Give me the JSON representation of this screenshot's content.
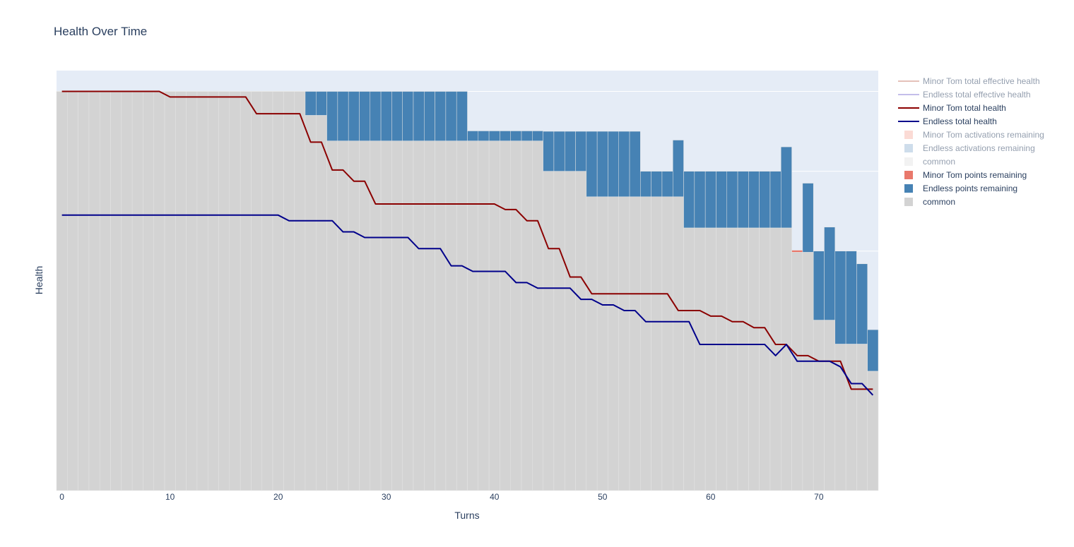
{
  "chart_data": {
    "type": "bar",
    "title": "Health Over Time",
    "xlabel": "Turns",
    "ylabel": "Health",
    "x_range": [
      -0.5,
      75.5
    ],
    "y_range": [
      0,
      100
    ],
    "x_ticks": [
      0,
      10,
      20,
      30,
      40,
      50,
      60,
      70
    ],
    "barmode": "stack",
    "plot_bgcolor": "#e5ecf6",
    "grid": true,
    "legend_position": "right",
    "colors": {
      "common": "#d3d3d3",
      "endless_points": "#4682b4",
      "minor_tom_points": "#e9786b",
      "minor_tom_line": "#8b0000",
      "endless_line": "#00008b",
      "minor_tom_effective": "#cd8475",
      "endless_effective": "#8a7fd6",
      "minor_tom_activations": "#f8b8ac",
      "endless_activations": "#9fbcd8",
      "common_faded": "#e6e6e6"
    },
    "series": [
      {
        "name": "Minor Tom total effective health",
        "kind": "line",
        "visible": "legendonly",
        "color_key": "minor_tom_effective"
      },
      {
        "name": "Endless total effective health",
        "kind": "line",
        "visible": "legendonly",
        "color_key": "endless_effective"
      },
      {
        "name": "Minor Tom total health",
        "kind": "line",
        "visible": true,
        "color_key": "minor_tom_line",
        "x": [
          0,
          9,
          10,
          17,
          18,
          22,
          23,
          24,
          25,
          26,
          27,
          28,
          29,
          40,
          41,
          42,
          43,
          44,
          45,
          46,
          47,
          48,
          49,
          56,
          57,
          59,
          60,
          61,
          62,
          63,
          64,
          65,
          66,
          67,
          68,
          69,
          70,
          71,
          72,
          73,
          74,
          75
        ],
        "y": [
          100,
          100,
          98.6,
          98.6,
          94.4,
          94.4,
          87.3,
          87.3,
          80.3,
          80.3,
          77.5,
          77.5,
          71.8,
          71.8,
          70.4,
          70.4,
          67.6,
          67.6,
          60.6,
          60.6,
          53.5,
          53.5,
          49.3,
          49.3,
          45.1,
          45.1,
          43.7,
          43.7,
          42.3,
          42.3,
          40.8,
          40.8,
          36.6,
          36.6,
          33.8,
          33.8,
          32.4,
          32.4,
          32.4,
          25.4,
          25.4,
          25.4
        ]
      },
      {
        "name": "Endless total health",
        "kind": "line",
        "visible": true,
        "color_key": "endless_line",
        "x": [
          0,
          20,
          21,
          25,
          26,
          27,
          28,
          32,
          33,
          35,
          36,
          37,
          38,
          41,
          42,
          43,
          44,
          47,
          48,
          49,
          50,
          51,
          52,
          53,
          54,
          58,
          59,
          65,
          66,
          67,
          68,
          71,
          72,
          73,
          74,
          75
        ],
        "y": [
          69,
          69,
          67.6,
          67.6,
          64.8,
          64.8,
          63.4,
          63.4,
          60.6,
          60.6,
          56.3,
          56.3,
          54.9,
          54.9,
          52.1,
          52.1,
          50.7,
          50.7,
          47.9,
          47.9,
          46.5,
          46.5,
          45.1,
          45.1,
          42.3,
          42.3,
          36.6,
          36.6,
          33.8,
          36.6,
          32.4,
          32.4,
          31,
          26.8,
          26.8,
          23.9
        ]
      },
      {
        "name": "Minor Tom activations remaining",
        "kind": "bar",
        "visible": "legendonly",
        "color_key": "minor_tom_activations"
      },
      {
        "name": "Endless activations remaining",
        "kind": "bar",
        "visible": "legendonly",
        "color_key": "endless_activations"
      },
      {
        "name": "common",
        "kind": "bar",
        "visible": "legendonly",
        "color_key": "common_faded"
      },
      {
        "name": "Minor Tom points remaining",
        "kind": "bar",
        "visible": true,
        "color_key": "minor_tom_points",
        "x": [
          68
        ],
        "values": [
          0.5
        ]
      },
      {
        "name": "Endless points remaining",
        "kind": "bar",
        "visible": true,
        "color_key": "endless_points",
        "x": [
          23,
          24,
          25,
          26,
          27,
          28,
          29,
          30,
          31,
          32,
          33,
          34,
          35,
          36,
          37,
          38,
          39,
          40,
          41,
          42,
          43,
          44,
          45,
          46,
          47,
          48,
          49,
          50,
          51,
          52,
          53,
          54,
          55,
          56,
          57,
          58,
          59,
          60,
          61,
          62,
          63,
          64,
          65,
          66,
          67,
          69,
          70,
          71,
          72,
          73,
          74,
          75
        ],
        "values": [
          6,
          6,
          12.4,
          12.4,
          12.4,
          12.4,
          12.4,
          12.4,
          12.4,
          12.4,
          12.4,
          12.4,
          12.4,
          12.4,
          12.4,
          2.5,
          2.5,
          2.5,
          2.5,
          2.5,
          2.5,
          2.5,
          10,
          10,
          10,
          10,
          16.4,
          16.4,
          16.4,
          16.4,
          16.4,
          6.4,
          6.4,
          6.4,
          14.2,
          14.2,
          14.2,
          14.2,
          14.2,
          14.2,
          14.2,
          14.2,
          14.2,
          14.2,
          20.3,
          17.3,
          17.3,
          23.3,
          23.3,
          23.3,
          20.1,
          10.4
        ]
      },
      {
        "name": "common",
        "kind": "bar",
        "visible": true,
        "color_key": "common",
        "x": [
          0,
          1,
          2,
          3,
          4,
          5,
          6,
          7,
          8,
          9,
          10,
          11,
          12,
          13,
          14,
          15,
          16,
          17,
          18,
          19,
          20,
          21,
          22,
          23,
          24,
          25,
          26,
          27,
          28,
          29,
          30,
          31,
          32,
          33,
          34,
          35,
          36,
          37,
          38,
          39,
          40,
          41,
          42,
          43,
          44,
          45,
          46,
          47,
          48,
          49,
          50,
          51,
          52,
          53,
          54,
          55,
          56,
          57,
          58,
          59,
          60,
          61,
          62,
          63,
          64,
          65,
          66,
          67,
          68,
          69,
          70,
          71,
          72,
          73,
          74,
          75
        ],
        "values": [
          100,
          100,
          100,
          100,
          100,
          100,
          100,
          100,
          100,
          100,
          100,
          100,
          100,
          100,
          100,
          100,
          100,
          100,
          100,
          100,
          100,
          100,
          100,
          94,
          94,
          87.6,
          87.6,
          87.6,
          87.6,
          87.6,
          87.6,
          87.6,
          87.6,
          87.6,
          87.6,
          87.6,
          87.6,
          87.6,
          87.6,
          87.6,
          87.6,
          87.6,
          87.6,
          87.6,
          87.6,
          80,
          80,
          80,
          80,
          73.6,
          73.6,
          73.6,
          73.6,
          73.6,
          73.6,
          73.6,
          73.6,
          73.6,
          65.8,
          65.8,
          65.8,
          65.8,
          65.8,
          65.8,
          65.8,
          65.8,
          65.8,
          65.8,
          59.7,
          59.7,
          42.7,
          42.7,
          36.7,
          36.7,
          36.7,
          29.9
        ]
      }
    ]
  }
}
